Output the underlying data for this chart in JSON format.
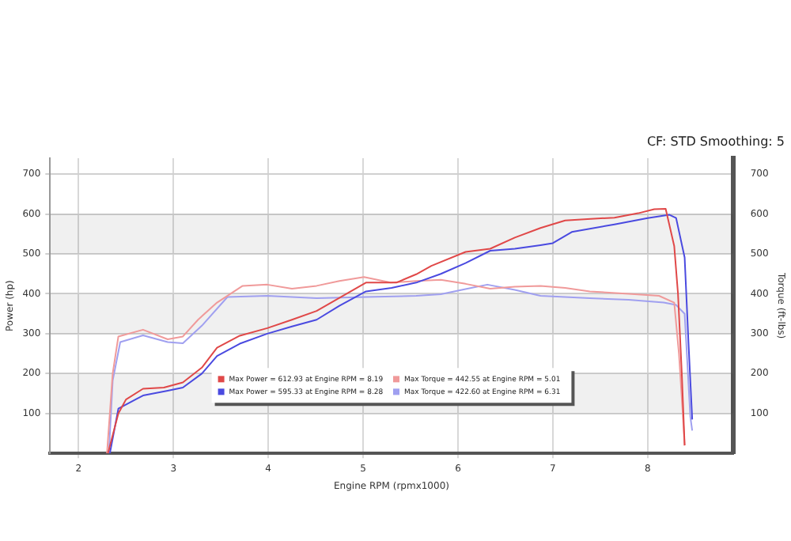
{
  "chart_data": {
    "type": "line",
    "xlabel": "Engine RPM (rpmx1000)",
    "ylabel": "Power (hp)",
    "y2label": "Torque (ft-lbs)",
    "annotations": [
      "CF: STD Smoothing: 5"
    ],
    "xlim": [
      1.7,
      8.9
    ],
    "xticks": [
      2,
      3,
      4,
      5,
      6,
      7,
      8
    ],
    "ylim": [
      0,
      740
    ],
    "yticks": [
      100,
      200,
      300,
      400,
      500,
      600,
      700
    ],
    "y2lim": [
      0,
      740
    ],
    "y2ticks": [
      100,
      200,
      300,
      400,
      500,
      600,
      700
    ],
    "grid": true,
    "legend": "center",
    "marker": "none",
    "line_style": "solid",
    "series": [
      {
        "name": "Max Power = 612.93 at Engine RPM = 8.19",
        "color": "#e04848",
        "x": [
          2.31,
          2.42,
          2.5,
          2.68,
          2.9,
          3.1,
          3.3,
          3.46,
          3.7,
          3.99,
          4.25,
          4.51,
          4.75,
          5.03,
          5.35,
          5.56,
          5.72,
          6.08,
          6.34,
          6.6,
          6.87,
          7.13,
          7.4,
          7.65,
          7.9,
          8.07,
          8.19,
          8.28,
          8.32,
          8.36,
          8.39
        ],
        "values": [
          0,
          100,
          135,
          162,
          165,
          178,
          215,
          265,
          295,
          314,
          335,
          357,
          390,
          428,
          428,
          449,
          470,
          505,
          513,
          541,
          565,
          584,
          588,
          591,
          602,
          612,
          613,
          520,
          400,
          200,
          20
        ]
      },
      {
        "name": "Max Power = 595.33 at Engine RPM = 8.28",
        "color": "#4a4ae0",
        "x": [
          2.33,
          2.42,
          2.6,
          2.68,
          2.94,
          3.1,
          3.3,
          3.46,
          3.7,
          3.99,
          4.25,
          4.51,
          4.75,
          5.03,
          5.3,
          5.56,
          5.82,
          6.08,
          6.34,
          6.6,
          6.87,
          7.0,
          7.2,
          7.65,
          8.0,
          8.23,
          8.3,
          8.39,
          8.43,
          8.47
        ],
        "values": [
          0,
          112,
          135,
          145,
          157,
          165,
          200,
          244,
          275,
          300,
          318,
          335,
          370,
          406,
          415,
          428,
          450,
          477,
          508,
          513,
          522,
          527,
          555,
          574,
          590,
          598,
          590,
          491,
          280,
          85
        ]
      },
      {
        "name": "Max Torque = 442.55 at Engine RPM = 5.01",
        "color": "#f09a9a",
        "x": [
          2.3,
          2.36,
          2.42,
          2.68,
          2.94,
          3.1,
          3.26,
          3.46,
          3.73,
          3.99,
          4.25,
          4.51,
          4.75,
          5.01,
          5.29,
          5.56,
          5.82,
          6.08,
          6.34,
          6.6,
          6.87,
          7.13,
          7.39,
          7.8,
          8.12,
          8.28,
          8.33,
          8.37,
          8.39
        ],
        "values": [
          0,
          200,
          293,
          310,
          286,
          293,
          335,
          378,
          420,
          423,
          413,
          420,
          432,
          442,
          428,
          432,
          435,
          425,
          413,
          418,
          420,
          415,
          406,
          400,
          395,
          378,
          250,
          100,
          20
        ]
      },
      {
        "name": "Max Torque = 422.60 at Engine RPM = 6.31",
        "color": "#a0a0f0",
        "x": [
          2.32,
          2.36,
          2.44,
          2.68,
          2.94,
          3.1,
          3.3,
          3.57,
          3.99,
          4.51,
          5.03,
          5.56,
          5.82,
          6.08,
          6.31,
          6.6,
          6.87,
          7.39,
          7.8,
          8.17,
          8.3,
          8.39,
          8.45,
          8.47
        ],
        "values": [
          0,
          182,
          279,
          296,
          279,
          276,
          320,
          392,
          395,
          389,
          392,
          395,
          399,
          412,
          423,
          410,
          395,
          389,
          385,
          378,
          372,
          350,
          92,
          57
        ]
      }
    ]
  }
}
